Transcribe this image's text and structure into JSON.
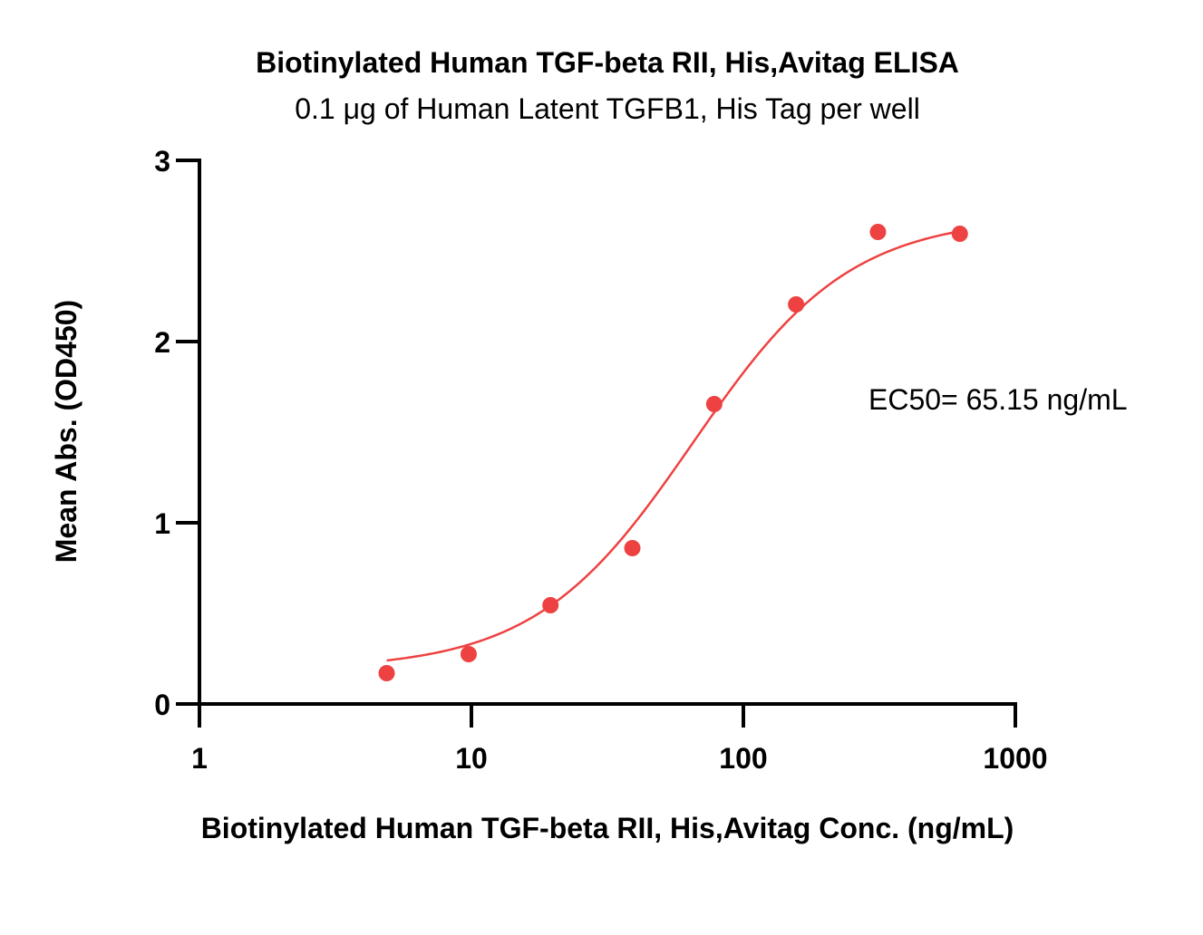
{
  "chart_data": {
    "type": "scatter",
    "title": "Biotinylated Human TGF-beta RII, His,Avitag ELISA",
    "subtitle": "0.1 μg of Human Latent TGFB1, His Tag per well",
    "xlabel": "Biotinylated Human TGF-beta RII, His,Avitag Conc. (ng/mL)",
    "ylabel": "Mean Abs. (OD450)",
    "x_scale": "log",
    "xlim": [
      1,
      1000
    ],
    "ylim": [
      0,
      3
    ],
    "x_ticks": [
      1,
      10,
      100,
      1000
    ],
    "x_tick_labels": [
      "1",
      "10",
      "100",
      "1000"
    ],
    "y_ticks": [
      0,
      1,
      2,
      3
    ],
    "y_tick_labels": [
      "0",
      "1",
      "2",
      "3"
    ],
    "grid": false,
    "color": "#ee4242",
    "series": [
      {
        "x": [
          4.88,
          9.77,
          19.53,
          39.06,
          78.13,
          156.25,
          312.5,
          625
        ],
        "y": [
          0.17,
          0.275,
          0.545,
          0.86,
          1.655,
          2.205,
          2.605,
          2.595
        ]
      }
    ],
    "fit": {
      "model": "4PL",
      "bottom": 0.19,
      "top": 2.69,
      "ec50": 65.15,
      "hill": 1.5
    },
    "annotation": "EC50= 65.15 ng/mL"
  }
}
